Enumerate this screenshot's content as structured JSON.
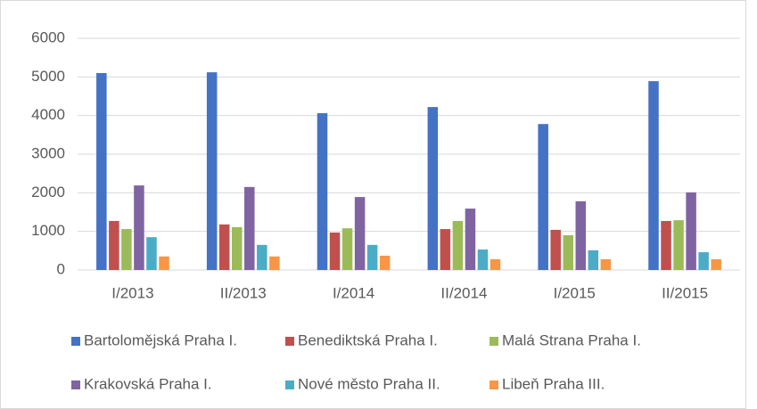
{
  "chart_data": {
    "type": "bar",
    "categories": [
      "I/2013",
      "II/2013",
      "I/2014",
      "II/2014",
      "I/2015",
      "II/2015"
    ],
    "series": [
      {
        "name": "Bartoloměјská Praha I.",
        "color": "#4472c4",
        "values": [
          5100,
          5120,
          4060,
          4220,
          3780,
          4890
        ]
      },
      {
        "name": "Benediktská Praha I.",
        "color": "#c0504d",
        "values": [
          1270,
          1180,
          970,
          1060,
          1040,
          1270
        ]
      },
      {
        "name": "Malá Strana Praha I.",
        "color": "#9bbb59",
        "values": [
          1060,
          1110,
          1080,
          1270,
          900,
          1290
        ]
      },
      {
        "name": "Krakovská Praha I.",
        "color": "#8064a2",
        "values": [
          2190,
          2150,
          1890,
          1590,
          1780,
          2010
        ]
      },
      {
        "name": "Nové město Praha II.",
        "color": "#4bacc6",
        "values": [
          850,
          650,
          650,
          530,
          510,
          460
        ]
      },
      {
        "name": "Libeň Praha III.",
        "color": "#f79646",
        "values": [
          350,
          350,
          370,
          280,
          280,
          280
        ]
      }
    ],
    "ylim": [
      0,
      6000
    ],
    "yticks": [
      0,
      1000,
      2000,
      3000,
      4000,
      5000,
      6000
    ],
    "grid": true,
    "legend": "bottom"
  }
}
